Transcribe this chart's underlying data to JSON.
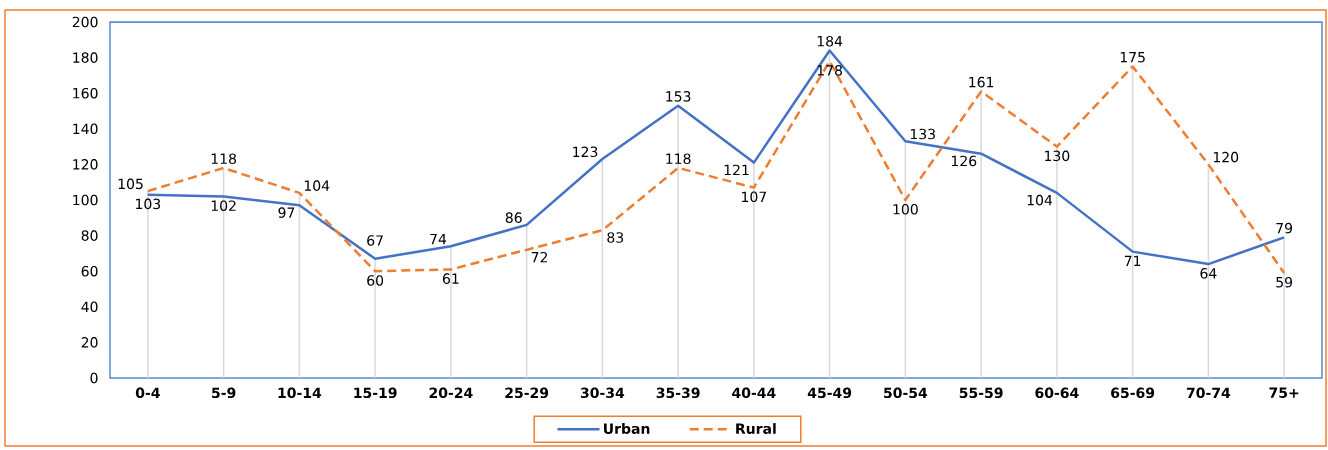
{
  "chart_data": {
    "type": "line",
    "categories": [
      "0-4",
      "5-9",
      "10-14",
      "15-19",
      "20-24",
      "25-29",
      "30-34",
      "35-39",
      "40-44",
      "45-49",
      "50-54",
      "55-59",
      "60-64",
      "65-69",
      "70-74",
      "75+"
    ],
    "series": [
      {
        "name": "Urban",
        "color": "#4472c4",
        "line_style": "solid",
        "values": [
          103,
          102,
          97,
          67,
          74,
          86,
          123,
          153,
          121,
          184,
          133,
          126,
          104,
          71,
          64,
          79
        ]
      },
      {
        "name": "Rural",
        "color": "#ed7d31",
        "line_style": "dashed",
        "values": [
          105,
          118,
          104,
          60,
          61,
          72,
          83,
          118,
          107,
          178,
          100,
          161,
          130,
          175,
          120,
          59
        ]
      }
    ],
    "ylim": [
      0,
      200
    ],
    "yticks": [
      0,
      20,
      40,
      60,
      80,
      100,
      120,
      140,
      160,
      180,
      200
    ],
    "grid": "x",
    "legend": "bottom",
    "data_labels": true,
    "marker": "none"
  }
}
